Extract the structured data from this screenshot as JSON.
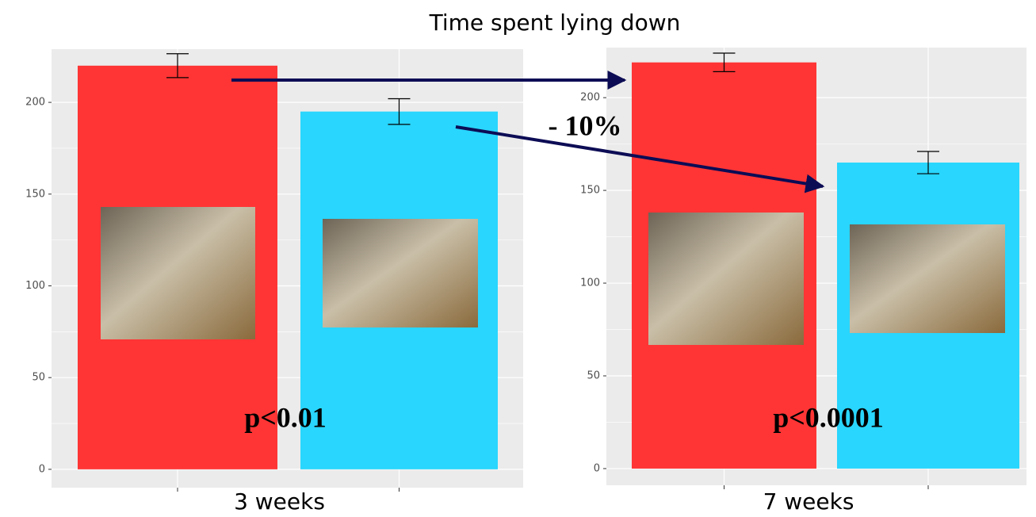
{
  "title": "Time spent lying down",
  "arrow_label": "- 10%",
  "chart_data": [
    {
      "type": "bar",
      "x_label": "3 weeks",
      "annotation": "p<0.01",
      "categories": [
        null,
        null
      ],
      "values": [
        220,
        195
      ],
      "errors": [
        6.5,
        7
      ],
      "colors": [
        "#ff3535",
        "#29d6fd"
      ],
      "ylim": [
        -10,
        229
      ],
      "yticks": [
        0,
        50,
        100,
        150,
        200
      ],
      "grid": true
    },
    {
      "type": "bar",
      "x_label": "7 weeks",
      "annotation": "p<0.0001",
      "categories": [
        null,
        null
      ],
      "values": [
        219,
        165
      ],
      "errors": [
        5,
        6
      ],
      "colors": [
        "#ff3535",
        "#29d6fd"
      ],
      "ylim": [
        -9,
        227
      ],
      "yticks": [
        0,
        50,
        100,
        150,
        200
      ],
      "grid": true
    }
  ]
}
